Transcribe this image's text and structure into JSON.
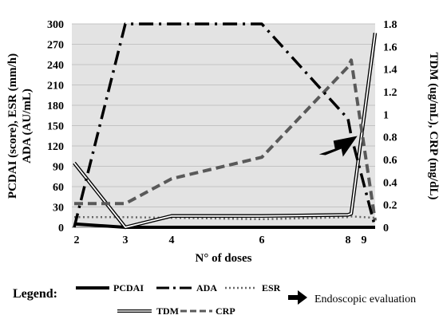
{
  "chart_data": {
    "type": "line",
    "title": "",
    "xlabel": "N° of doses",
    "ylabel_left": [
      "PCDAI (score), ESR (mm/h)",
      "ADA (AU/mL)"
    ],
    "ylabel_right": "TDM (ug/mL), CRP (mg/dL)",
    "x_ticks": [
      "2",
      "3",
      "4",
      "6",
      "8",
      "9"
    ],
    "y_left_ticks": [
      "0",
      "30",
      "60",
      "90",
      "120",
      "150",
      "180",
      "210",
      "240",
      "270",
      "300"
    ],
    "y_right_ticks": [
      "0",
      "0.2",
      "0.4",
      "0.6",
      "0.8",
      "1",
      "1.2",
      "1.4",
      "1.6",
      "1.8"
    ],
    "ylim_left": [
      0,
      300
    ],
    "ylim_right": [
      0,
      1.8
    ],
    "grid": true,
    "colors": {
      "plot_background": "#e3e3e3",
      "gridline": "#c3c3c3",
      "PCDAI": "#000000",
      "ADA": "#000000",
      "ESR": "#666666",
      "TDM": "#000000",
      "CRP": "#595959"
    },
    "series": [
      {
        "name": "PCDAI",
        "axis": "left",
        "style": "solid-thick",
        "points": [
          [
            2,
            5
          ],
          [
            3,
            0
          ],
          [
            4,
            0
          ],
          [
            6,
            0
          ],
          [
            8,
            0
          ],
          [
            8.45,
            0
          ],
          [
            9,
            0
          ]
        ]
      },
      {
        "name": "ADA",
        "axis": "left",
        "style": "dash-dot",
        "points": [
          [
            2,
            0
          ],
          [
            3,
            300
          ],
          [
            4,
            300
          ],
          [
            6,
            300
          ],
          [
            8,
            160
          ],
          [
            8.45,
            135
          ],
          [
            9,
            0
          ]
        ]
      },
      {
        "name": "ESR",
        "axis": "left",
        "style": "dotted",
        "points": [
          [
            2,
            15
          ],
          [
            3,
            15
          ],
          [
            4,
            14
          ],
          [
            6,
            12
          ],
          [
            8,
            15
          ],
          [
            8.45,
            16
          ],
          [
            9,
            14
          ]
        ]
      },
      {
        "name": "TDM",
        "axis": "right",
        "style": "double",
        "points": [
          [
            2,
            0.57
          ],
          [
            3,
            0
          ],
          [
            4,
            0.1
          ],
          [
            6,
            0.1
          ],
          [
            8,
            0.11
          ],
          [
            8.45,
            0.12
          ],
          [
            9,
            1.72
          ]
        ]
      },
      {
        "name": "CRP",
        "axis": "right",
        "style": "dashed",
        "points": [
          [
            2,
            0.21
          ],
          [
            3,
            0.21
          ],
          [
            4,
            0.43
          ],
          [
            6,
            0.62
          ],
          [
            8,
            1.42
          ],
          [
            8.45,
            1.48
          ],
          [
            9,
            0.06
          ]
        ]
      }
    ],
    "legend": {
      "title": "Legend:",
      "placement": "bottom",
      "entries": [
        "PCDAI",
        "ADA",
        "ESR",
        "TDM",
        "CRP"
      ]
    },
    "annotation": {
      "label": "Endoscopic evaluation",
      "icon": "arrow-icon",
      "x": 8.7,
      "y_right": 0.78
    }
  }
}
